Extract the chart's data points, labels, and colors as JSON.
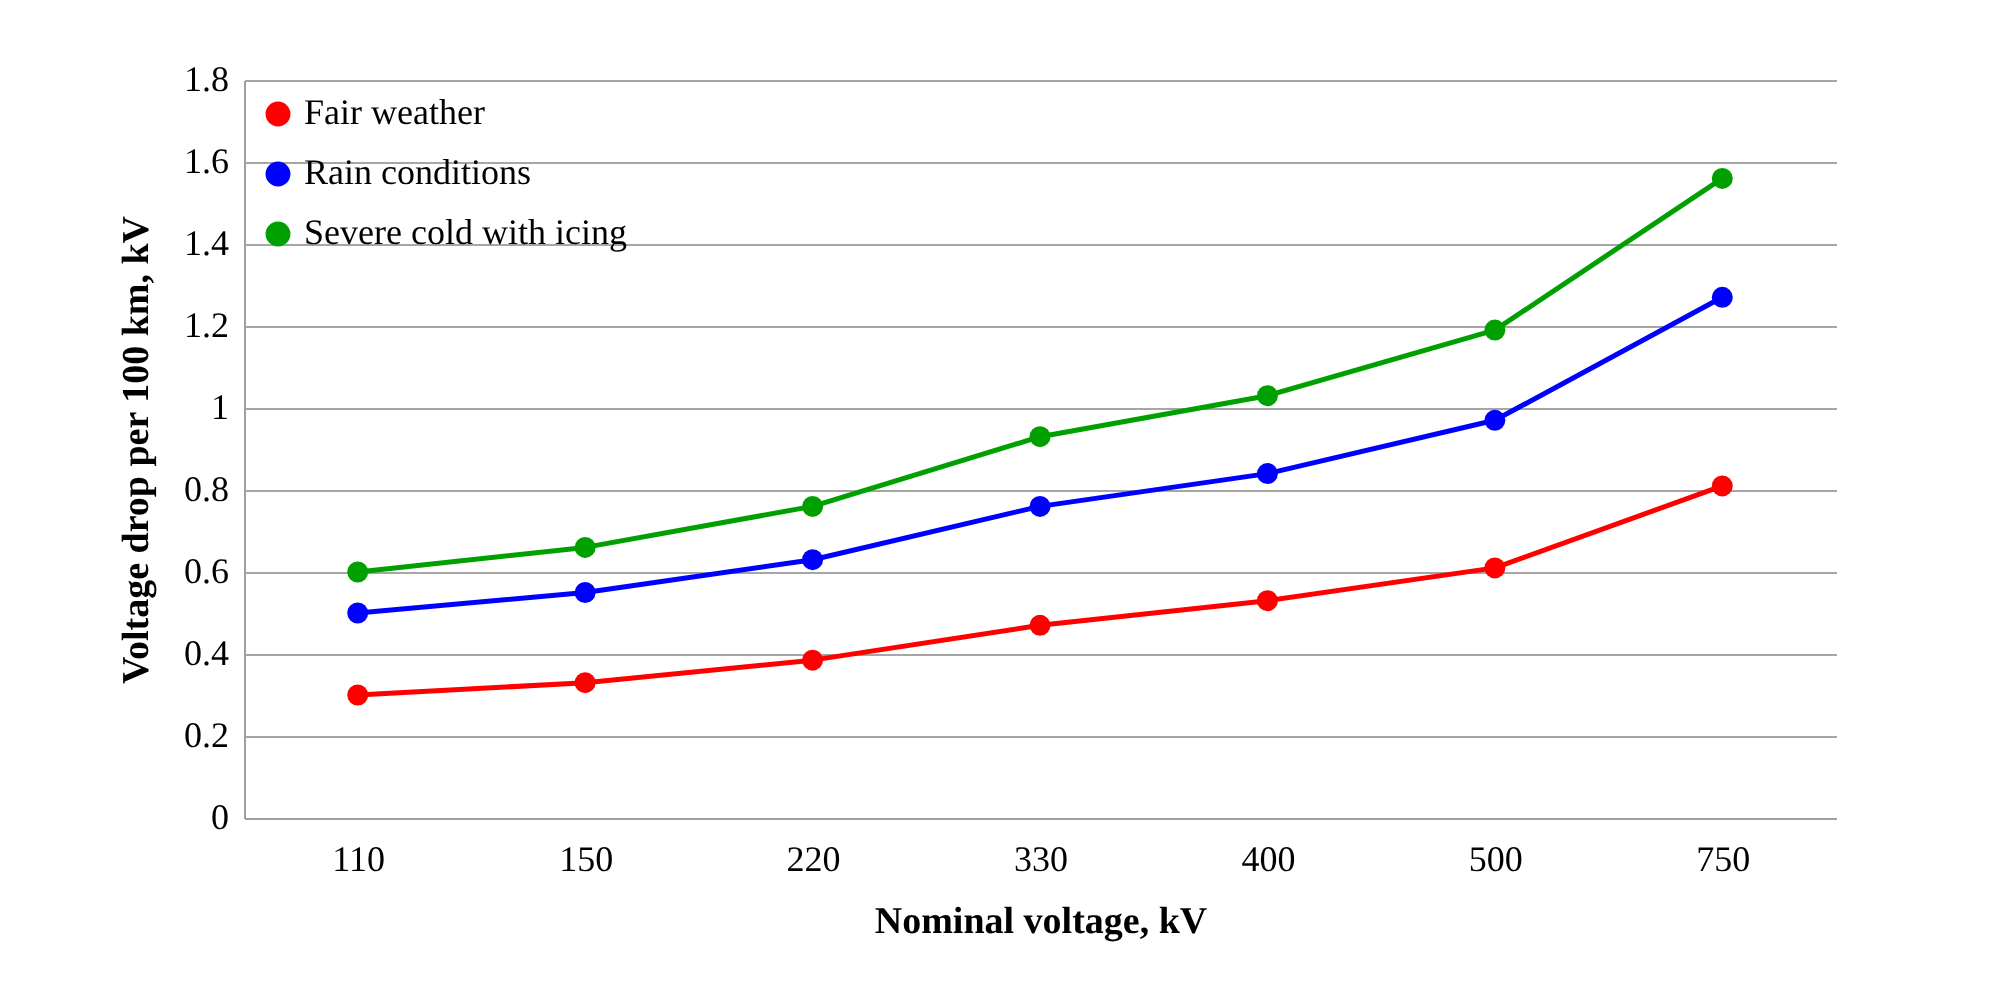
{
  "chart_data": {
    "type": "line",
    "xlabel": "Nominal voltage, kV",
    "ylabel": "Voltage drop per 100 km, kV",
    "categories": [
      "110",
      "150",
      "220",
      "330",
      "400",
      "500",
      "750"
    ],
    "series": [
      {
        "name": "Fair weather",
        "color": "#ff0000",
        "values": [
          0.3,
          0.33,
          0.385,
          0.47,
          0.53,
          0.61,
          0.81
        ]
      },
      {
        "name": "Rain conditions",
        "color": "#0000ff",
        "values": [
          0.5,
          0.55,
          0.63,
          0.76,
          0.84,
          0.97,
          1.27
        ]
      },
      {
        "name": "Severe cold with icing",
        "color": "#00a000",
        "values": [
          0.6,
          0.66,
          0.76,
          0.93,
          1.03,
          1.19,
          1.56
        ]
      }
    ],
    "ylim": [
      0,
      1.8
    ],
    "yticks": [
      0,
      0.2,
      0.4,
      0.6,
      0.8,
      1,
      1.2,
      1.4,
      1.6,
      1.8
    ],
    "grid": "y",
    "legend": "top left",
    "marker": "circle",
    "line_style": "solid"
  }
}
